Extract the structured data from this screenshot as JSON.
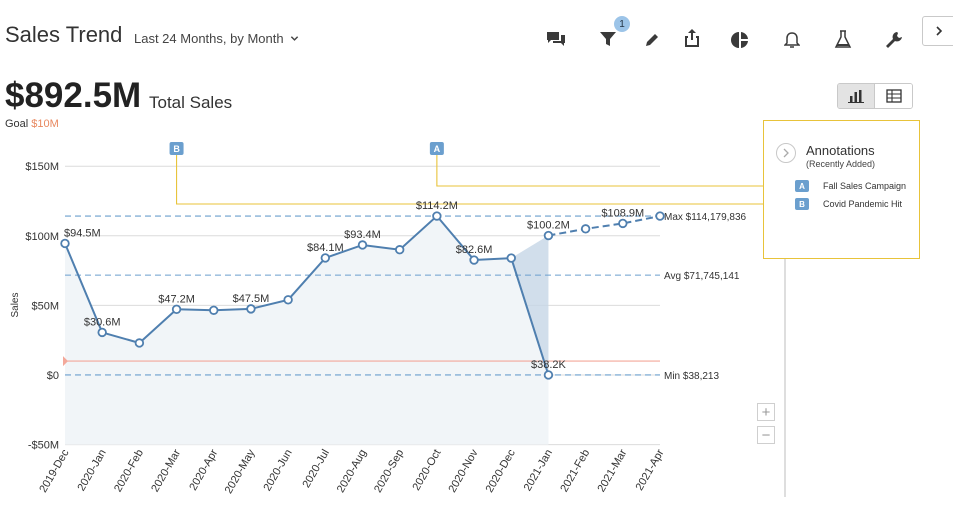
{
  "header": {
    "title": "Sales Trend",
    "period_label": "Last 24 Months, by Month",
    "filter_badge": "1"
  },
  "toolbar": {
    "icons": [
      "comments-icon",
      "filter-icon",
      "pen-icon",
      "share-icon",
      "pie-chart-icon",
      "bell-icon",
      "flask-icon",
      "wrench-icon",
      "chevron-right-icon"
    ]
  },
  "kpi": {
    "value": "$892.5M",
    "label": "Total Sales",
    "goal_label": "Goal",
    "goal_value": "$10M"
  },
  "colors": {
    "line": "#4f7faf",
    "area": "#f1f5f8",
    "goal": "#f3a89a",
    "annotation": "#e8c33a",
    "annotation_tag": "#6b9fce",
    "ref_line": "#6b9fce"
  },
  "annotations_panel": {
    "title": "Annotations",
    "subtitle": "(Recently Added)",
    "items": [
      {
        "tag": "A",
        "label": "Fall Sales Campaign",
        "category": "2020-Oct"
      },
      {
        "tag": "B",
        "label": "Covid Pandemic Hit",
        "category": "2020-Mar"
      }
    ]
  },
  "chart_data": {
    "type": "line",
    "ylabel": "Sales",
    "ylim": [
      -50000000,
      150000000
    ],
    "yticks": [
      {
        "value": 150000000,
        "label": "$150M"
      },
      {
        "value": 100000000,
        "label": "$100M"
      },
      {
        "value": 50000000,
        "label": "$50M"
      },
      {
        "value": 0,
        "label": "$0"
      },
      {
        "value": -50000000,
        "label": "-$50M"
      }
    ],
    "categories": [
      "2019-Dec",
      "2020-Jan",
      "2020-Feb",
      "2020-Mar",
      "2020-Apr",
      "2020-May",
      "2020-Jun",
      "2020-Jul",
      "2020-Aug",
      "2020-Sep",
      "2020-Oct",
      "2020-Nov",
      "2020-Dec",
      "2021-Jan",
      "2021-Feb",
      "2021-Mar",
      "2021-Apr"
    ],
    "series": [
      {
        "actual": [
          94500000,
          30600000,
          23000000,
          47200000,
          46500000,
          47500000,
          54000000,
          84100000,
          93400000,
          90000000,
          114200000,
          82600000,
          84000000,
          38200
        ],
        "forecast_start_index": 13,
        "forecast": [
          100200000,
          105000000,
          108900000,
          114179836
        ]
      }
    ],
    "data_labels": [
      {
        "index": 0,
        "text": "$94.5M"
      },
      {
        "index": 1,
        "text": "$30.6M"
      },
      {
        "index": 3,
        "text": "$47.2M"
      },
      {
        "index": 5,
        "text": "$47.5M"
      },
      {
        "index": 7,
        "text": "$84.1M"
      },
      {
        "index": 8,
        "text": "$93.4M"
      },
      {
        "index": 10,
        "text": "$114.2M"
      },
      {
        "index": 11,
        "text": "$82.6M"
      },
      {
        "index": 13,
        "text": "$38.2K"
      },
      {
        "index": 13,
        "text": "$100.2M",
        "forecast": true
      },
      {
        "index": 15,
        "text": "$108.9M",
        "forecast": true
      }
    ],
    "reference_lines": [
      {
        "name": "max",
        "value": 114179836,
        "label": "Max $114,179,836"
      },
      {
        "name": "avg",
        "value": 71745141,
        "label": "Avg $71,745,141"
      },
      {
        "name": "min",
        "value": 38213,
        "label": "Min $38,213"
      }
    ],
    "goal": 10000000,
    "grid": true,
    "annotation_markers": [
      {
        "tag": "B",
        "category_index": 3
      },
      {
        "tag": "A",
        "category_index": 10
      }
    ]
  }
}
